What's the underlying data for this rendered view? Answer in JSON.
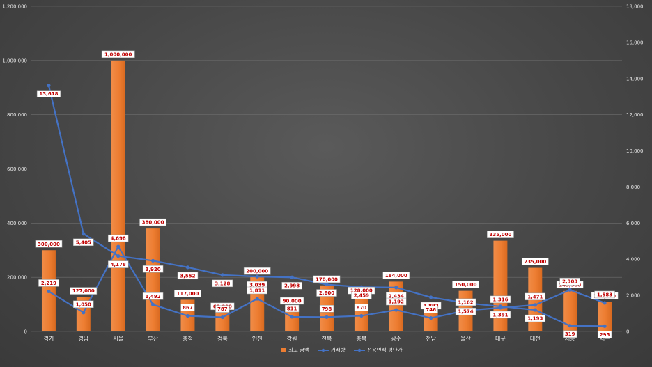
{
  "chart_data": {
    "type": "bar",
    "categories": [
      "경기",
      "경남",
      "서울",
      "부산",
      "충청",
      "경북",
      "인천",
      "강원",
      "전북",
      "충북",
      "광주",
      "전남",
      "울산",
      "대구",
      "대전",
      "세종",
      "제주"
    ],
    "series": [
      {
        "name": "최고 금액",
        "type": "bar",
        "axis": "left",
        "values": [
          300000,
          127000,
          1000000,
          380000,
          117000,
          69800,
          200000,
          90000,
          170000,
          128000,
          184000,
          72000,
          150000,
          335000,
          235000,
          149500,
          108500
        ],
        "labels": [
          "300,000",
          "127,000",
          "1,000,000",
          "380,000",
          "117,000",
          "69,800",
          "200,000",
          "90,000",
          "170,000",
          "128,000",
          "184,000",
          "",
          "150,000",
          "335,000",
          "235,000",
          "149,500",
          "108,500"
        ]
      },
      {
        "name": "거래량",
        "type": "line",
        "axis": "right",
        "values": [
          13618,
          5405,
          4178,
          3920,
          3552,
          3128,
          3039,
          2998,
          2600,
          2459,
          2434,
          1892,
          1574,
          1391,
          1193,
          319,
          295
        ],
        "labels": [
          "13,618",
          "5,405",
          "4,178",
          "3,920",
          "3,552",
          "3,128",
          "3,039",
          "2,998",
          "2,600",
          "2,459",
          "2,434",
          "1,892",
          "1,574",
          "1,391",
          "1,193",
          "319",
          "295"
        ]
      },
      {
        "name": "전용면적 평단가",
        "type": "line",
        "axis": "right",
        "values": [
          2219,
          1050,
          4698,
          1492,
          867,
          787,
          1811,
          811,
          798,
          870,
          1192,
          746,
          1162,
          1316,
          1471,
          2303,
          1583
        ],
        "labels": [
          "2,219",
          "1,050",
          "4,698",
          "1,492",
          "867",
          "787",
          "1,811",
          "811",
          "798",
          "870",
          "1,192",
          "746",
          "1,162",
          "1,316",
          "1,471",
          "2,303",
          "1,583"
        ]
      }
    ],
    "y_left": {
      "min": 0,
      "max": 1200000,
      "ticks": [
        "0",
        "200,000",
        "400,000",
        "600,000",
        "800,000",
        "1,000,000",
        "1,200,000"
      ]
    },
    "y_right": {
      "min": 0,
      "max": 18000,
      "ticks": [
        "0",
        "2,000",
        "4,000",
        "6,000",
        "8,000",
        "10,000",
        "12,000",
        "14,000",
        "16,000",
        "18,000"
      ]
    },
    "legend": {
      "position": "bottom",
      "items": [
        "최고 금액",
        "거래량",
        "전용면적 평단가"
      ]
    },
    "grid": true
  },
  "colors": {
    "bar": "#ed7d31",
    "line": "#4472c4",
    "label_text": "#c00000"
  }
}
